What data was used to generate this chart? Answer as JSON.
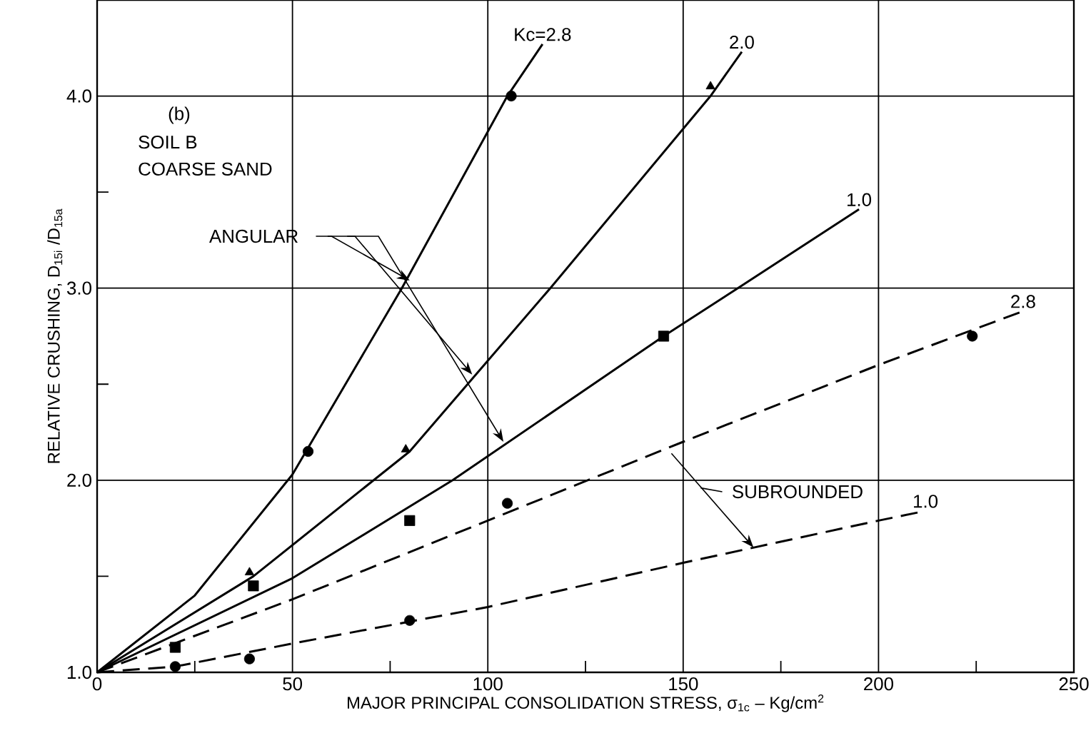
{
  "chart_data": {
    "type": "line",
    "xlabel": "MAJOR PRINCIPAL CONSOLIDATION STRESS, σ$_{1c}$ – Kg/cm$^{2}$",
    "ylabel": "RELATIVE CRUSHING, D$_{15i}$ /D$_{15a}$",
    "xlim": [
      0,
      250
    ],
    "ylim": [
      1,
      4.5
    ],
    "xticks": [
      0,
      {
        "value": 25,
        "label": null
      },
      50,
      {
        "value": 75,
        "label": null
      },
      100,
      {
        "value": 125,
        "label": null
      },
      150,
      {
        "value": 175,
        "label": null
      },
      200,
      {
        "value": 225,
        "label": null
      },
      250
    ],
    "yticks": [
      {
        "value": 1,
        "label": "1.0"
      },
      {
        "value": 1.5,
        "label": null
      },
      {
        "value": 2,
        "label": "2.0"
      },
      {
        "value": 2.5,
        "label": null
      },
      {
        "value": 3,
        "label": "3.0"
      },
      {
        "value": 3.5,
        "label": null
      },
      {
        "value": 4,
        "label": "4.0"
      }
    ],
    "grid": true,
    "marker": "none",
    "line_style": "solid",
    "series": [
      {
        "color": "#000000",
        "x": [
          0,
          25,
          50,
          78,
          105,
          114
        ],
        "values": [
          1,
          1.4,
          2.03,
          3.0,
          4.0,
          4.27
        ]
      },
      {
        "color": "#000000",
        "x": [
          0,
          40,
          80,
          116,
          157,
          165
        ],
        "values": [
          1,
          1.5,
          2.15,
          3.0,
          4.0,
          4.23
        ]
      },
      {
        "color": "#000000",
        "x": [
          0,
          50,
          91,
          145,
          164,
          195
        ],
        "values": [
          1,
          1.49,
          2.0,
          2.75,
          3.0,
          3.41
        ]
      },
      {
        "color": "#000000",
        "line_style": "dashed",
        "x": [
          0,
          50,
          100,
          150,
          200,
          237
        ],
        "values": [
          1,
          1.38,
          1.79,
          2.2,
          2.6,
          2.88
        ]
      },
      {
        "color": "#000000",
        "line_style": "dashed",
        "x": [
          0,
          20,
          50,
          100,
          150,
          200,
          212
        ],
        "values": [
          1,
          1.03,
          1.15,
          1.34,
          1.57,
          1.79,
          1.84
        ]
      },
      {
        "type": "scatter",
        "marker": "circle",
        "color": "#000000",
        "x": [
          54,
          106
        ],
        "values": [
          2.15,
          4.0
        ]
      },
      {
        "type": "scatter",
        "marker": "triangle",
        "color": "#000000",
        "x": [
          39,
          79,
          157
        ],
        "values": [
          1.52,
          2.16,
          4.05
        ]
      },
      {
        "type": "scatter",
        "marker": "square",
        "color": "#000000",
        "x": [
          20,
          40,
          80,
          145
        ],
        "values": [
          1.13,
          1.45,
          1.79,
          2.75
        ]
      },
      {
        "type": "scatter",
        "marker": "circle",
        "color": "#000000",
        "x": [
          20,
          39,
          80,
          105,
          224
        ],
        "values": [
          1.03,
          1.07,
          1.27,
          1.88,
          2.75
        ]
      }
    ],
    "annotations": [
      {
        "text": "Kc=2.8",
        "x": 114,
        "y": 4.27
      },
      {
        "text": "2.0",
        "x": 165,
        "y": 4.23
      },
      {
        "text": "1.0",
        "x": 195,
        "y": 3.41
      },
      {
        "text": "2.8",
        "x": 237,
        "y": 2.88
      },
      {
        "text": "1.0",
        "x": 212,
        "y": 1.84
      },
      "(b)",
      "SOIL B",
      "COARSE SAND",
      {
        "text": "ANGULAR",
        "x": 80,
        "y": 3.04
      },
      {
        "text": "SUBROUNDED",
        "x": 168,
        "y": 1.65
      }
    ]
  }
}
